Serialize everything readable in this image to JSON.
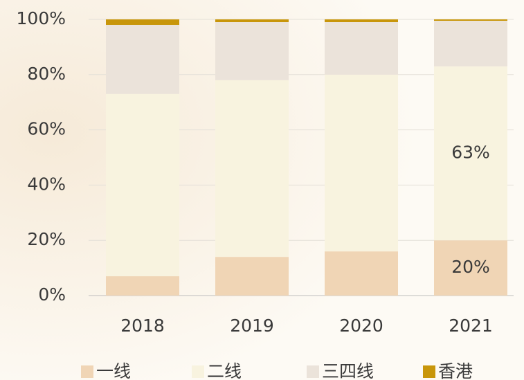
{
  "chart_data": {
    "type": "stacked_bar",
    "categories": [
      "2018",
      "2019",
      "2020",
      "2021"
    ],
    "series": [
      {
        "name": "一线",
        "color": "#f0d5b5",
        "values": [
          7,
          14,
          16,
          20
        ],
        "value_labels": [
          null,
          null,
          null,
          "20%"
        ]
      },
      {
        "name": "二线",
        "color": "#f8f3df",
        "values": [
          66,
          64,
          64,
          63
        ],
        "value_labels": [
          null,
          null,
          null,
          "63%"
        ]
      },
      {
        "name": "三四线",
        "color": "#ebe3da",
        "values": [
          25,
          21,
          19,
          16.5
        ]
      },
      {
        "name": "香港",
        "color": "#c8960a",
        "values": [
          2,
          1,
          1,
          0.5
        ]
      }
    ],
    "ylim": [
      0,
      100
    ],
    "yticks": [
      {
        "value": 0,
        "label": "0%"
      },
      {
        "value": 20,
        "label": "20%"
      },
      {
        "value": 40,
        "label": "40%"
      },
      {
        "value": 60,
        "label": "60%"
      },
      {
        "value": 80,
        "label": "80%"
      },
      {
        "value": 100,
        "label": "100%"
      }
    ],
    "grid": true,
    "legend": "bottom"
  }
}
